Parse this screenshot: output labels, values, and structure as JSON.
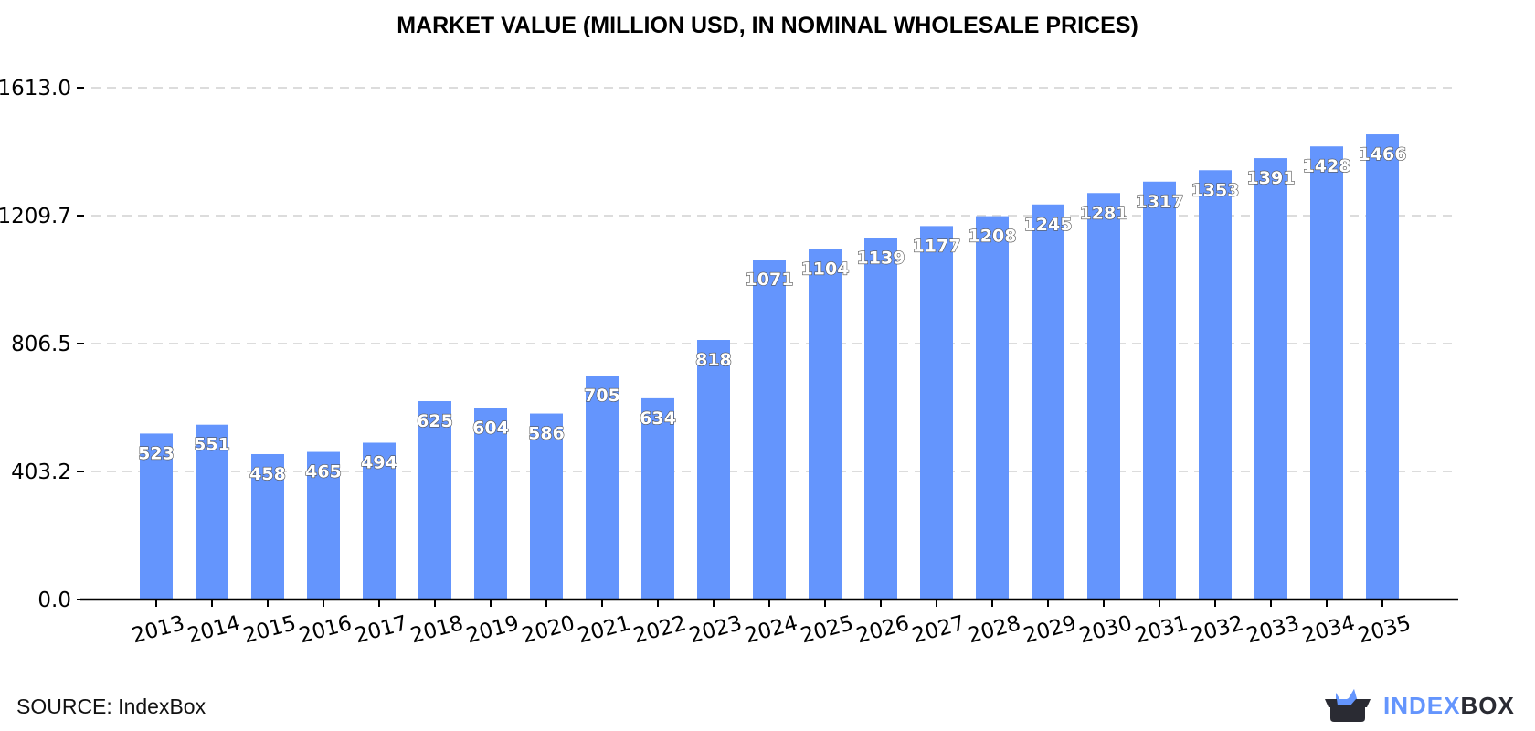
{
  "chart_data": {
    "type": "bar",
    "title": "MARKET VALUE (MILLION USD, IN NOMINAL WHOLESALE PRICES)",
    "xlabel": "",
    "ylabel": "",
    "categories": [
      "2013",
      "2014",
      "2015",
      "2016",
      "2017",
      "2018",
      "2019",
      "2020",
      "2021",
      "2022",
      "2023",
      "2024",
      "2025",
      "2026",
      "2027",
      "2028",
      "2029",
      "2030",
      "2031",
      "2032",
      "2033",
      "2034",
      "2035"
    ],
    "values": [
      523,
      551,
      458,
      465,
      494,
      625,
      604,
      586,
      705,
      634,
      818,
      1071,
      1104,
      1139,
      1177,
      1208,
      1245,
      1281,
      1317,
      1353,
      1391,
      1428,
      1466
    ],
    "yticks": [
      "0.0",
      "403.2",
      "806.5",
      "1209.7",
      "1613.0"
    ],
    "ylim": [
      0,
      1613.0
    ],
    "grid": "horizontal dashed",
    "bar_color": "#6495fd"
  },
  "footer": {
    "source": "SOURCE: IndexBox",
    "logo_a": "INDEX",
    "logo_b": "BOX"
  },
  "colors": {
    "accent": "#6495fd",
    "dark": "#2a2b33"
  }
}
